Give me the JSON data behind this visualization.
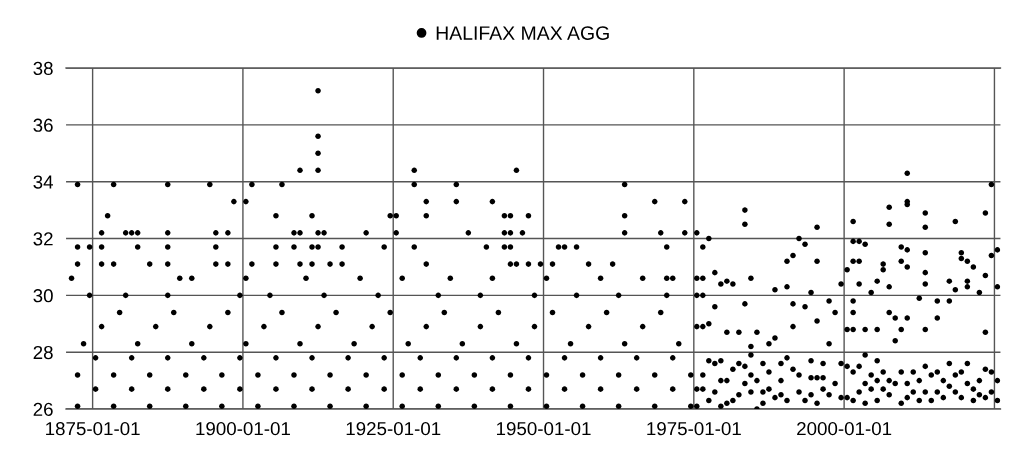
{
  "chart_data": {
    "type": "scatter",
    "xlim": [
      "1870-08-01",
      "2026-01-01"
    ],
    "ylim": [
      26,
      38
    ],
    "xticks": [
      "1875-01-01",
      "1900-01-01",
      "1925-01-01",
      "1950-01-01",
      "1975-01-01",
      "2000-01-01",
      {
        "value": "2025-01-01",
        "label": null
      }
    ],
    "yticks": [
      26,
      28,
      30,
      32,
      34,
      36,
      38
    ],
    "grid": true,
    "legend": "top",
    "marker": "circle",
    "series": [
      {
        "name": "HALIFAX MAX AGG",
        "color": "#000000",
        "x": [
          "1872-07",
          "1878-07",
          "1884-07",
          "1890-07",
          "1896-07",
          "1902-07",
          "1908-07",
          "1914-07",
          "1920-07",
          "1926-07",
          "1932-07",
          "1938-07",
          "1944-07",
          "1950-07",
          "1956-07",
          "1962-07",
          "1968-07",
          "1974-07",
          "1872-07",
          "1878-07",
          "1884-07",
          "1890-07",
          "1896-07",
          "1902-07",
          "1908-07",
          "1914-07",
          "1920-07",
          "1926-07",
          "1932-07",
          "1938-07",
          "1944-07",
          "1950-07",
          "1956-07",
          "1962-07",
          "1968-07",
          "1974-07",
          "1875-07",
          "1881-07",
          "1887-07",
          "1893-07",
          "1899-07",
          "1905-07",
          "1911-07",
          "1917-07",
          "1923-07",
          "1929-07",
          "1935-07",
          "1941-07",
          "1947-07",
          "1953-07",
          "1959-07",
          "1965-07",
          "1971-07",
          "1875-07",
          "1881-07",
          "1887-07",
          "1893-07",
          "1899-07",
          "1905-07",
          "1911-07",
          "1917-07",
          "1923-07",
          "1929-07",
          "1935-07",
          "1941-07",
          "1947-07",
          "1953-07",
          "1959-07",
          "1965-07",
          "1971-07",
          "1873-07",
          "1882-07",
          "1891-07",
          "1900-07",
          "1909-07",
          "1918-07",
          "1927-07",
          "1936-07",
          "1945-07",
          "1954-07",
          "1963-07",
          "1972-07",
          "1876-07",
          "1885-07",
          "1894-07",
          "1903-07",
          "1912-07",
          "1921-07",
          "1930-07",
          "1939-07",
          "1948-07",
          "1957-07",
          "1966-07",
          "1879-07",
          "1888-07",
          "1897-07",
          "1906-07",
          "1915-07",
          "1924-07",
          "1933-07",
          "1942-07",
          "1951-07",
          "1960-07",
          "1969-07",
          "1874-07",
          "1880-07",
          "1887-07",
          "1899-07",
          "1904-07",
          "1913-07",
          "1922-07",
          "1932-07",
          "1939-07",
          "1948-07",
          "1955-07",
          "1962-07",
          "1970-07",
          "1871-07",
          "1889-07",
          "1891-07",
          "1900-07",
          "1910-07",
          "1919-07",
          "1926-07",
          "1934-07",
          "1941-07",
          "1950-07",
          "1959-07",
          "1966-07",
          "1970-07",
          "1971-07",
          "1872-07",
          "1872-07",
          "1872-07",
          "1874-07",
          "1876-07",
          "1876-07",
          "1876-07",
          "1877-07",
          "1878-07",
          "1878-07",
          "1880-07",
          "1881-07",
          "1882-07",
          "1882-07",
          "1884-07",
          "1887-07",
          "1887-07",
          "1887-07",
          "1887-07",
          "1894-07",
          "1895-07",
          "1895-07",
          "1895-07",
          "1897-07",
          "1897-07",
          "1898-07",
          "1900-07",
          "1901-07",
          "1901-07",
          "1905-07",
          "1905-07",
          "1905-07",
          "1906-07",
          "1908-07",
          "1908-07",
          "1909-07",
          "1909-07",
          "1909-07",
          "1911-07",
          "1911-07",
          "1911-07",
          "1912-07",
          "1912-07",
          "1912-07",
          "1912-07",
          "1912-07",
          "1912-07",
          "1913-07",
          "1914-07",
          "1916-07",
          "1916-07",
          "1920-07",
          "1923-07",
          "1924-07",
          "1925-07",
          "1925-07",
          "1928-07",
          "1928-07",
          "1928-07",
          "1930-07",
          "1930-07",
          "1930-07",
          "1935-07",
          "1935-07",
          "1937-07",
          "1940-07",
          "1941-07",
          "1943-07",
          "1943-07",
          "1943-07",
          "1944-07",
          "1944-07",
          "1944-07",
          "1944-07",
          "1945-07",
          "1945-07",
          "1946-07",
          "1947-07",
          "1947-07",
          "1949-07",
          "1951-07",
          "1952-07",
          "1953-07",
          "1955-07",
          "1957-07",
          "1961-07",
          "1963-07",
          "1963-07",
          "1963-07",
          "1968-07",
          "1969-07",
          "1970-07",
          "1973-07",
          "1973-07",
          "1975-07",
          "1975-07",
          "1975-07",
          "1975-07",
          "1975-07",
          "1975-07",
          "1976-07",
          "1976-07",
          "1976-07",
          "1976-07",
          "1976-07",
          "1976-07",
          "1977-07",
          "1977-07",
          "1977-07",
          "1978-07",
          "1978-07",
          "1978-07",
          "1978-07",
          "1979-07",
          "1979-07",
          "1979-07",
          "1980-07",
          "1980-07",
          "1980-07",
          "1981-07",
          "1981-07",
          "1982-07",
          "1982-07",
          "1983-07",
          "1983-07",
          "1983-07",
          "1983-07",
          "1984-07",
          "1984-07",
          "1984-07",
          "1984-07",
          "1985-07",
          "1985-07",
          "1986-07",
          "1986-07",
          "1987-07",
          "1987-07",
          "1988-07",
          "1988-07",
          "1989-07",
          "1989-07",
          "1990-07",
          "1990-07",
          "1990-07",
          "1991-07",
          "1991-07",
          "1991-07",
          "1992-07",
          "1992-07",
          "1993-07",
          "1993-07",
          "1994-07",
          "1994-07",
          "1994-07",
          "1995-07",
          "1995-07",
          "1995-07",
          "1995-07",
          "1996-07",
          "1996-07",
          "1997-07",
          "1997-07",
          "1998-07",
          "1999-07",
          "1999-07",
          "2000-07",
          "2000-07",
          "2000-07",
          "2001-07",
          "2001-07",
          "2001-07",
          "2001-07",
          "2001-07",
          "2001-07",
          "2001-07",
          "2002-07",
          "2002-07",
          "2002-07",
          "2002-07",
          "2003-07",
          "2003-07",
          "2003-07",
          "2003-07",
          "2004-07",
          "2004-07",
          "2005-07",
          "2005-07",
          "2005-07",
          "2005-07",
          "2006-07",
          "2006-07",
          "2006-07",
          "2007-07",
          "2007-07",
          "2007-07",
          "2007-07",
          "2007-07",
          "2009-07",
          "2009-07",
          "2009-07",
          "2009-07",
          "2010-07",
          "2010-07",
          "2010-07",
          "2010-07",
          "2010-07",
          "2010-07",
          "2010-07",
          "2011-07",
          "2012-07",
          "2012-07",
          "2013-07",
          "2013-07",
          "2013-07",
          "2013-07",
          "2013-07",
          "2013-07",
          "2013-07",
          "2014-07",
          "2015-07",
          "2015-07",
          "2015-07",
          "2016-07",
          "2017-07",
          "2017-07",
          "2017-07",
          "2018-07",
          "2018-07",
          "2018-07",
          "2019-07",
          "2019-07",
          "2019-07",
          "2020-07",
          "2020-07",
          "2020-07",
          "2020-07",
          "2021-07",
          "2021-07",
          "2022-07",
          "2022-07",
          "2023-07",
          "2023-07",
          "2023-07",
          "2023-07",
          "2024-07",
          "2024-07",
          "2024-07",
          "2025-07",
          "2025-07",
          "2025-07",
          "1977-07",
          "1979-07",
          "1980-07",
          "1981-07",
          "1982-07",
          "1983-07",
          "1984-07",
          "1985-07",
          "1986-07",
          "1987-07",
          "1988-07",
          "1989-07",
          "1990-07",
          "1991-07",
          "1992-07",
          "1993-07",
          "1994-07",
          "1995-07",
          "1996-07",
          "1997-07",
          "1998-07",
          "1999-07",
          "2000-07",
          "2001-07",
          "2002-07",
          "2003-07",
          "2004-07",
          "2005-07",
          "2006-07",
          "2007-07",
          "2008-07",
          "2009-07",
          "2010-07",
          "2011-07",
          "2012-07",
          "2013-07",
          "2014-07",
          "2015-07",
          "2016-07",
          "2017-07",
          "2018-07",
          "2019-07",
          "2020-07",
          "2021-07",
          "2022-07",
          "2023-07",
          "2024-07",
          "2025-07",
          "2008-07",
          "2008-07"
        ],
        "values": [
          26.1,
          26.1,
          26.1,
          26.1,
          26.1,
          26.1,
          26.1,
          26.1,
          26.1,
          26.1,
          26.1,
          26.1,
          26.1,
          26.1,
          26.1,
          26.1,
          26.1,
          26.1,
          27.2,
          27.2,
          27.2,
          27.2,
          27.2,
          27.2,
          27.2,
          27.2,
          27.2,
          27.2,
          27.2,
          27.2,
          27.2,
          27.2,
          27.2,
          27.2,
          27.2,
          27.2,
          26.7,
          26.7,
          26.7,
          26.7,
          26.7,
          26.7,
          26.7,
          26.7,
          26.7,
          26.7,
          26.7,
          26.7,
          26.7,
          26.7,
          26.7,
          26.7,
          26.7,
          27.8,
          27.8,
          27.8,
          27.8,
          27.8,
          27.8,
          27.8,
          27.8,
          27.8,
          27.8,
          27.8,
          27.8,
          27.8,
          27.8,
          27.8,
          27.8,
          27.8,
          28.3,
          28.3,
          28.3,
          28.3,
          28.3,
          28.3,
          28.3,
          28.3,
          28.3,
          28.3,
          28.3,
          28.3,
          28.9,
          28.9,
          28.9,
          28.9,
          28.9,
          28.9,
          28.9,
          28.9,
          28.9,
          28.9,
          28.9,
          29.4,
          29.4,
          29.4,
          29.4,
          29.4,
          29.4,
          29.4,
          29.4,
          29.4,
          29.4,
          29.4,
          30.0,
          30.0,
          30.0,
          30.0,
          30.0,
          30.0,
          30.0,
          30.0,
          30.0,
          30.0,
          30.0,
          30.0,
          30.0,
          30.6,
          30.6,
          30.6,
          30.6,
          30.6,
          30.6,
          30.6,
          30.6,
          30.6,
          30.6,
          30.6,
          30.6,
          30.6,
          30.6,
          33.9,
          31.7,
          31.1,
          31.7,
          32.2,
          31.7,
          31.1,
          32.8,
          33.9,
          31.1,
          32.2,
          32.2,
          32.2,
          31.7,
          31.1,
          33.9,
          32.2,
          31.7,
          31.1,
          33.9,
          32.2,
          31.7,
          31.1,
          32.2,
          31.1,
          33.3,
          33.3,
          33.9,
          31.1,
          32.8,
          31.7,
          31.1,
          33.9,
          32.2,
          31.7,
          34.4,
          32.2,
          31.1,
          32.8,
          31.7,
          31.1,
          37.2,
          35.6,
          35.0,
          34.4,
          32.2,
          31.7,
          32.2,
          31.1,
          31.7,
          31.1,
          32.2,
          31.7,
          32.8,
          32.8,
          32.2,
          34.4,
          33.9,
          31.7,
          33.3,
          32.8,
          31.1,
          33.9,
          33.3,
          32.2,
          31.7,
          33.3,
          32.8,
          32.2,
          31.7,
          32.8,
          32.2,
          31.7,
          31.1,
          34.4,
          31.1,
          32.2,
          32.8,
          31.1,
          31.1,
          31.1,
          31.7,
          31.7,
          31.7,
          31.1,
          31.1,
          33.9,
          32.8,
          32.2,
          33.3,
          32.2,
          31.7,
          33.3,
          32.2,
          32.2,
          30.6,
          30.0,
          28.9,
          26.7,
          26.1,
          31.7,
          30.6,
          30.0,
          28.9,
          27.2,
          26.7,
          32.0,
          29.0,
          27.7,
          30.8,
          29.6,
          27.6,
          26.6,
          30.4,
          27.7,
          26.1,
          30.5,
          28.7,
          27.0,
          30.4,
          26.3,
          28.7,
          27.6,
          33.0,
          32.5,
          29.7,
          26.9,
          30.6,
          28.2,
          27.9,
          26.6,
          28.7,
          26.0,
          27.6,
          26.6,
          28.3,
          27.3,
          30.2,
          28.5,
          27.0,
          26.5,
          31.2,
          30.3,
          27.8,
          31.4,
          29.7,
          28.9,
          32.0,
          26.6,
          31.8,
          29.6,
          30.1,
          27.7,
          27.1,
          32.4,
          31.2,
          29.1,
          27.1,
          27.6,
          26.7,
          29.8,
          28.3,
          29.4,
          30.4,
          26.4,
          30.9,
          28.8,
          27.5,
          32.6,
          31.9,
          31.2,
          29.8,
          29.4,
          28.8,
          27.3,
          31.9,
          31.2,
          30.4,
          27.5,
          31.8,
          28.8,
          27.9,
          26.9,
          30.1,
          27.2,
          30.5,
          28.8,
          27.7,
          27.0,
          31.1,
          30.9,
          27.3,
          33.1,
          32.5,
          30.3,
          29.4,
          27.0,
          31.7,
          31.2,
          28.8,
          27.3,
          34.3,
          33.3,
          33.2,
          31.6,
          31.0,
          29.2,
          26.9,
          26.6,
          29.9,
          27.0,
          32.9,
          32.4,
          31.5,
          30.8,
          30.4,
          28.8,
          27.5,
          27.2,
          29.8,
          29.2,
          27.3,
          27.0,
          30.5,
          29.8,
          26.8,
          32.6,
          30.2,
          26.6,
          31.5,
          31.3,
          27.3,
          31.2,
          30.5,
          30.3,
          26.9,
          31.0,
          26.7,
          30.1,
          27.0,
          32.9,
          30.7,
          28.7,
          26.4,
          33.9,
          31.4,
          27.3,
          31.6,
          30.3,
          27.0,
          26.3,
          27.0,
          26.2,
          27.4,
          26.5,
          27.5,
          27.2,
          27.0,
          26.2,
          26.7,
          26.4,
          27.6,
          26.3,
          27.4,
          27.2,
          26.3,
          26.5,
          26.2,
          27.1,
          26.5,
          26.9,
          27.6,
          26.4,
          26.3,
          26.6,
          26.2,
          26.7,
          26.3,
          26.7,
          26.5,
          26.9,
          26.2,
          26.4,
          27.3,
          26.3,
          26.6,
          26.3,
          26.6,
          26.4,
          27.6,
          27.2,
          26.4,
          27.6,
          26.3,
          26.5,
          27.4,
          26.6,
          26.3,
          29.2,
          28.4
        ]
      }
    ]
  }
}
